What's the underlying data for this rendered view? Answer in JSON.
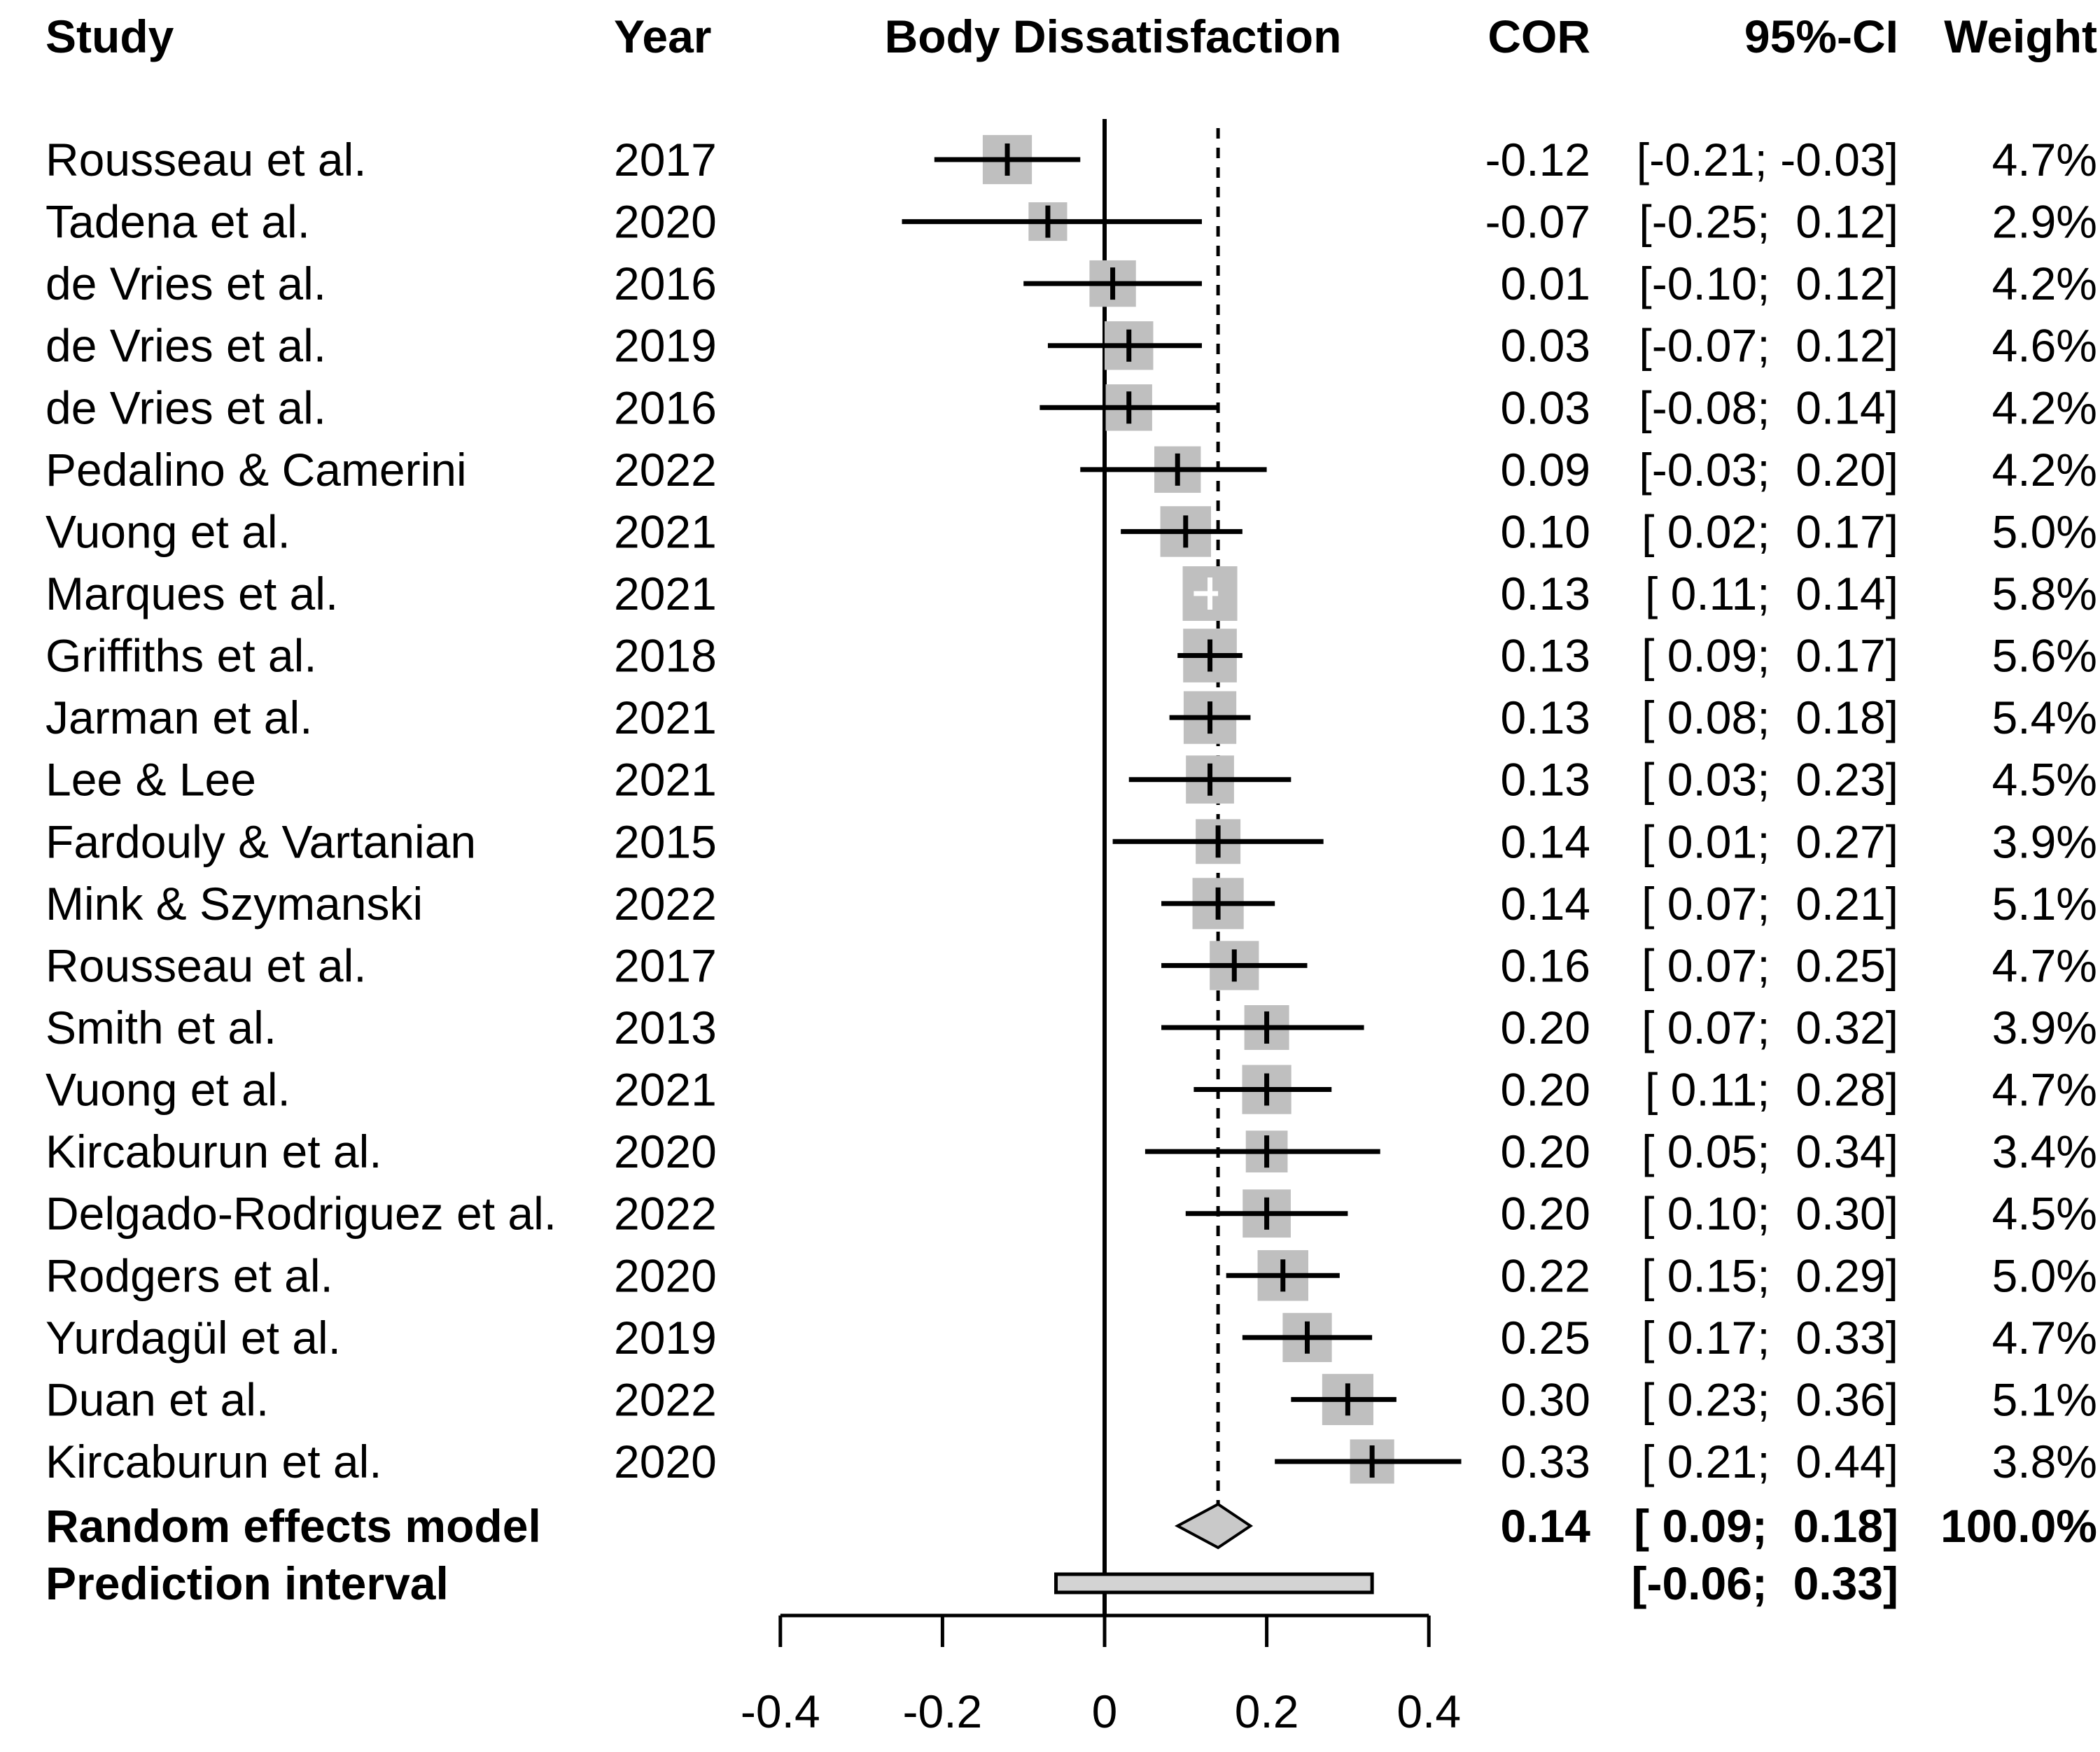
{
  "title": "Body Dissatisfaction",
  "columns": {
    "study": "Study",
    "year": "Year",
    "cor": "COR",
    "ci": "95%-CI",
    "weight": "Weight"
  },
  "colors": {
    "square": "#bfbfbf",
    "diamond": "#c9c9c9",
    "prediction_bar": "#d3d3d3",
    "line": "#000000",
    "background": "#ffffff"
  },
  "chart_data": {
    "type": "forest",
    "effect_measure": "COR",
    "title": "Body Dissatisfaction",
    "x_axis": {
      "ticks": [
        -0.4,
        -0.2,
        0,
        0.2,
        0.4
      ],
      "tick_labels": [
        "-0.4",
        "-0.2",
        "0",
        "0.2",
        "0.4"
      ],
      "range": [
        -0.45,
        0.47
      ]
    },
    "reference_line": 0,
    "pooled_line": 0.14,
    "studies": [
      {
        "study": "Rousseau et al.",
        "year": "2017",
        "cor": -0.12,
        "ci_lo": -0.21,
        "ci_hi": -0.03,
        "cor_label": "-0.12",
        "ci_label": "[-0.21; -0.03]",
        "weight": 4.7,
        "weight_label": "4.7%"
      },
      {
        "study": "Tadena et al.",
        "year": "2020",
        "cor": -0.07,
        "ci_lo": -0.25,
        "ci_hi": 0.12,
        "cor_label": "-0.07",
        "ci_label": "[-0.25;  0.12]",
        "weight": 2.9,
        "weight_label": "2.9%"
      },
      {
        "study": "de Vries et al.",
        "year": "2016",
        "cor": 0.01,
        "ci_lo": -0.1,
        "ci_hi": 0.12,
        "cor_label": "0.01",
        "ci_label": "[-0.10;  0.12]",
        "weight": 4.2,
        "weight_label": "4.2%"
      },
      {
        "study": "de Vries et al.",
        "year": "2019",
        "cor": 0.03,
        "ci_lo": -0.07,
        "ci_hi": 0.12,
        "cor_label": "0.03",
        "ci_label": "[-0.07;  0.12]",
        "weight": 4.6,
        "weight_label": "4.6%"
      },
      {
        "study": "de Vries et al.",
        "year": "2016",
        "cor": 0.03,
        "ci_lo": -0.08,
        "ci_hi": 0.14,
        "cor_label": "0.03",
        "ci_label": "[-0.08;  0.14]",
        "weight": 4.2,
        "weight_label": "4.2%"
      },
      {
        "study": "Pedalino & Camerini",
        "year": "2022",
        "cor": 0.09,
        "ci_lo": -0.03,
        "ci_hi": 0.2,
        "cor_label": "0.09",
        "ci_label": "[-0.03;  0.20]",
        "weight": 4.2,
        "weight_label": "4.2%"
      },
      {
        "study": "Vuong et al.",
        "year": "2021",
        "cor": 0.1,
        "ci_lo": 0.02,
        "ci_hi": 0.17,
        "cor_label": "0.10",
        "ci_label": "[ 0.02;  0.17]",
        "weight": 5.0,
        "weight_label": "5.0%"
      },
      {
        "study": "Marques et al.",
        "year": "2021",
        "cor": 0.13,
        "ci_lo": 0.11,
        "ci_hi": 0.14,
        "cor_label": "0.13",
        "ci_label": "[ 0.11;  0.14]",
        "weight": 5.8,
        "weight_label": "5.8%"
      },
      {
        "study": "Griffiths et al.",
        "year": "2018",
        "cor": 0.13,
        "ci_lo": 0.09,
        "ci_hi": 0.17,
        "cor_label": "0.13",
        "ci_label": "[ 0.09;  0.17]",
        "weight": 5.6,
        "weight_label": "5.6%"
      },
      {
        "study": "Jarman et al.",
        "year": "2021",
        "cor": 0.13,
        "ci_lo": 0.08,
        "ci_hi": 0.18,
        "cor_label": "0.13",
        "ci_label": "[ 0.08;  0.18]",
        "weight": 5.4,
        "weight_label": "5.4%"
      },
      {
        "study": "Lee & Lee",
        "year": "2021",
        "cor": 0.13,
        "ci_lo": 0.03,
        "ci_hi": 0.23,
        "cor_label": "0.13",
        "ci_label": "[ 0.03;  0.23]",
        "weight": 4.5,
        "weight_label": "4.5%"
      },
      {
        "study": "Fardouly & Vartanian",
        "year": "2015",
        "cor": 0.14,
        "ci_lo": 0.01,
        "ci_hi": 0.27,
        "cor_label": "0.14",
        "ci_label": "[ 0.01;  0.27]",
        "weight": 3.9,
        "weight_label": "3.9%"
      },
      {
        "study": "Mink & Szymanski",
        "year": "2022",
        "cor": 0.14,
        "ci_lo": 0.07,
        "ci_hi": 0.21,
        "cor_label": "0.14",
        "ci_label": "[ 0.07;  0.21]",
        "weight": 5.1,
        "weight_label": "5.1%"
      },
      {
        "study": "Rousseau et al.",
        "year": "2017",
        "cor": 0.16,
        "ci_lo": 0.07,
        "ci_hi": 0.25,
        "cor_label": "0.16",
        "ci_label": "[ 0.07;  0.25]",
        "weight": 4.7,
        "weight_label": "4.7%"
      },
      {
        "study": "Smith et al.",
        "year": "2013",
        "cor": 0.2,
        "ci_lo": 0.07,
        "ci_hi": 0.32,
        "cor_label": "0.20",
        "ci_label": "[ 0.07;  0.32]",
        "weight": 3.9,
        "weight_label": "3.9%"
      },
      {
        "study": "Vuong et al.",
        "year": "2021",
        "cor": 0.2,
        "ci_lo": 0.11,
        "ci_hi": 0.28,
        "cor_label": "0.20",
        "ci_label": "[ 0.11;  0.28]",
        "weight": 4.7,
        "weight_label": "4.7%"
      },
      {
        "study": "Kircaburun et al.",
        "year": "2020",
        "cor": 0.2,
        "ci_lo": 0.05,
        "ci_hi": 0.34,
        "cor_label": "0.20",
        "ci_label": "[ 0.05;  0.34]",
        "weight": 3.4,
        "weight_label": "3.4%"
      },
      {
        "study": "Delgado-Rodriguez et al.",
        "year": "2022",
        "cor": 0.2,
        "ci_lo": 0.1,
        "ci_hi": 0.3,
        "cor_label": "0.20",
        "ci_label": "[ 0.10;  0.30]",
        "weight": 4.5,
        "weight_label": "4.5%"
      },
      {
        "study": "Rodgers et al.",
        "year": "2020",
        "cor": 0.22,
        "ci_lo": 0.15,
        "ci_hi": 0.29,
        "cor_label": "0.22",
        "ci_label": "[ 0.15;  0.29]",
        "weight": 5.0,
        "weight_label": "5.0%"
      },
      {
        "study": "Yurdagül et al.",
        "year": "2019",
        "cor": 0.25,
        "ci_lo": 0.17,
        "ci_hi": 0.33,
        "cor_label": "0.25",
        "ci_label": "[ 0.17;  0.33]",
        "weight": 4.7,
        "weight_label": "4.7%"
      },
      {
        "study": "Duan et al.",
        "year": "2022",
        "cor": 0.3,
        "ci_lo": 0.23,
        "ci_hi": 0.36,
        "cor_label": "0.30",
        "ci_label": "[ 0.23;  0.36]",
        "weight": 5.1,
        "weight_label": "5.1%"
      },
      {
        "study": "Kircaburun et al.",
        "year": "2020",
        "cor": 0.33,
        "ci_lo": 0.21,
        "ci_hi": 0.44,
        "cor_label": "0.33",
        "ci_label": "[ 0.21;  0.44]",
        "weight": 3.8,
        "weight_label": "3.8%"
      }
    ],
    "summary": {
      "label": "Random effects model",
      "cor": 0.14,
      "ci_lo": 0.09,
      "ci_hi": 0.18,
      "cor_label": "0.14",
      "ci_label": "[ 0.09;  0.18]",
      "weight_label": "100.0%"
    },
    "prediction_interval": {
      "label": "Prediction interval",
      "ci_lo": -0.06,
      "ci_hi": 0.33,
      "ci_label": "[-0.06;  0.33]"
    }
  }
}
